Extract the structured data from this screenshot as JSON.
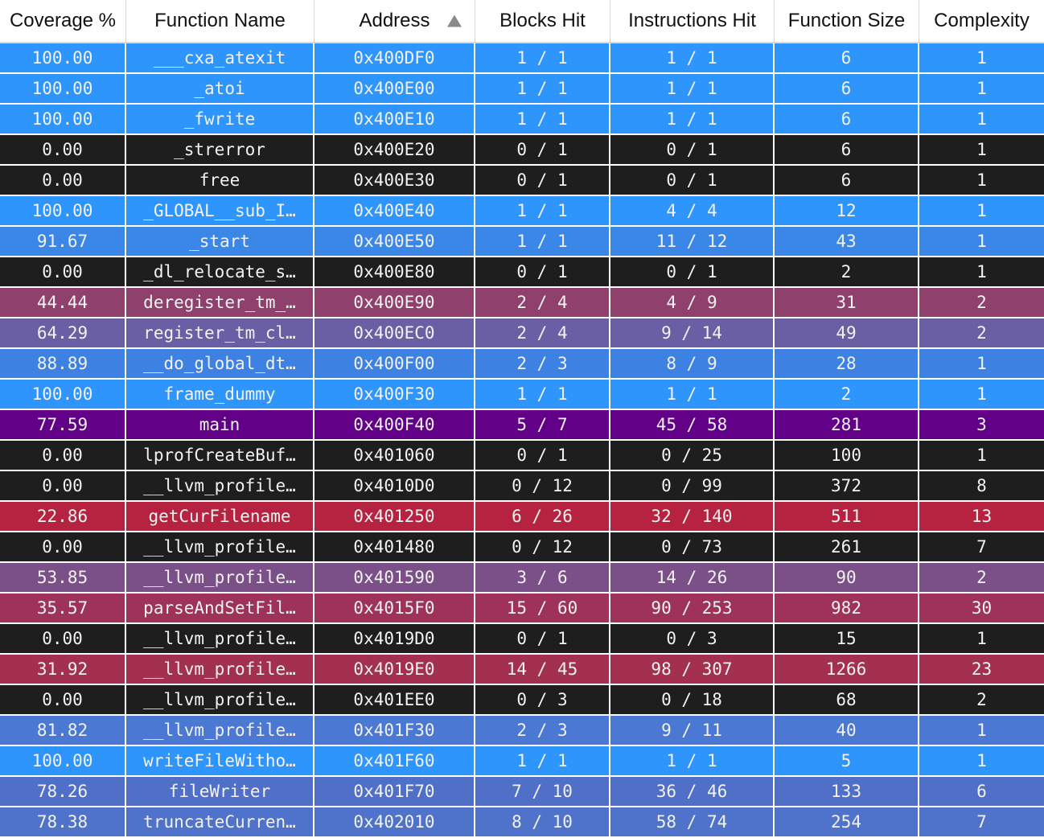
{
  "columns": [
    "Coverage %",
    "Function Name",
    "Address",
    "Blocks Hit",
    "Instructions Hit",
    "Function Size",
    "Complexity"
  ],
  "sort": {
    "column": "Address",
    "direction": "ascending"
  },
  "rows": [
    {
      "cov": "100.00",
      "name": "___cxa_atexit",
      "addr": "0x400DF0",
      "blocks": "1 / 1",
      "instr": "1 / 1",
      "size": "6",
      "cx": "1",
      "color": "#2d95fc"
    },
    {
      "cov": "100.00",
      "name": "_atoi",
      "addr": "0x400E00",
      "blocks": "1 / 1",
      "instr": "1 / 1",
      "size": "6",
      "cx": "1",
      "color": "#2d95fc"
    },
    {
      "cov": "100.00",
      "name": "_fwrite",
      "addr": "0x400E10",
      "blocks": "1 / 1",
      "instr": "1 / 1",
      "size": "6",
      "cx": "1",
      "color": "#2d95fc"
    },
    {
      "cov": "0.00",
      "name": "_strerror",
      "addr": "0x400E20",
      "blocks": "0 / 1",
      "instr": "0 / 1",
      "size": "6",
      "cx": "1",
      "color": "#1e1e1e"
    },
    {
      "cov": "0.00",
      "name": "free",
      "addr": "0x400E30",
      "blocks": "0 / 1",
      "instr": "0 / 1",
      "size": "6",
      "cx": "1",
      "color": "#1e1e1e"
    },
    {
      "cov": "100.00",
      "name": "_GLOBAL__sub_I…",
      "addr": "0x400E40",
      "blocks": "1 / 1",
      "instr": "4 / 4",
      "size": "12",
      "cx": "1",
      "color": "#2d95fc"
    },
    {
      "cov": "91.67",
      "name": "_start",
      "addr": "0x400E50",
      "blocks": "1 / 1",
      "instr": "11 / 12",
      "size": "43",
      "cx": "1",
      "color": "#3b87e8"
    },
    {
      "cov": "0.00",
      "name": "_dl_relocate_s…",
      "addr": "0x400E80",
      "blocks": "0 / 1",
      "instr": "0 / 1",
      "size": "2",
      "cx": "1",
      "color": "#1e1e1e"
    },
    {
      "cov": "44.44",
      "name": "deregister_tm_…",
      "addr": "0x400E90",
      "blocks": "2 / 4",
      "instr": "4 / 9",
      "size": "31",
      "cx": "2",
      "color": "#8f406d"
    },
    {
      "cov": "64.29",
      "name": "register_tm_cl…",
      "addr": "0x400EC0",
      "blocks": "2 / 4",
      "instr": "9 / 14",
      "size": "49",
      "cx": "2",
      "color": "#6a5ea5"
    },
    {
      "cov": "88.89",
      "name": "__do_global_dt…",
      "addr": "0x400F00",
      "blocks": "2 / 3",
      "instr": "8 / 9",
      "size": "28",
      "cx": "1",
      "color": "#3d82e2"
    },
    {
      "cov": "100.00",
      "name": "frame_dummy",
      "addr": "0x400F30",
      "blocks": "1 / 1",
      "instr": "1 / 1",
      "size": "2",
      "cx": "1",
      "color": "#2d95fc"
    },
    {
      "cov": "77.59",
      "name": "main",
      "addr": "0x400F40",
      "blocks": "5 / 7",
      "instr": "45 / 58",
      "size": "281",
      "cx": "3",
      "color": "#620087"
    },
    {
      "cov": "0.00",
      "name": "lprofCreateBuf…",
      "addr": "0x401060",
      "blocks": "0 / 1",
      "instr": "0 / 25",
      "size": "100",
      "cx": "1",
      "color": "#1e1e1e"
    },
    {
      "cov": "0.00",
      "name": "__llvm_profile…",
      "addr": "0x4010D0",
      "blocks": "0 / 12",
      "instr": "0 / 99",
      "size": "372",
      "cx": "8",
      "color": "#1e1e1e"
    },
    {
      "cov": "22.86",
      "name": "getCurFilename",
      "addr": "0x401250",
      "blocks": "6 / 26",
      "instr": "32 / 140",
      "size": "511",
      "cx": "13",
      "color": "#b52340"
    },
    {
      "cov": "0.00",
      "name": "__llvm_profile…",
      "addr": "0x401480",
      "blocks": "0 / 12",
      "instr": "0 / 73",
      "size": "261",
      "cx": "7",
      "color": "#1e1e1e"
    },
    {
      "cov": "53.85",
      "name": "__llvm_profile…",
      "addr": "0x401590",
      "blocks": "3 / 6",
      "instr": "14 / 26",
      "size": "90",
      "cx": "2",
      "color": "#7b5088"
    },
    {
      "cov": "35.57",
      "name": "parseAndSetFil…",
      "addr": "0x4015F0",
      "blocks": "15 / 60",
      "instr": "90 / 253",
      "size": "982",
      "cx": "30",
      "color": "#9e3258"
    },
    {
      "cov": "0.00",
      "name": "__llvm_profile…",
      "addr": "0x4019D0",
      "blocks": "0 / 1",
      "instr": "0 / 3",
      "size": "15",
      "cx": "1",
      "color": "#1e1e1e"
    },
    {
      "cov": "31.92",
      "name": "__llvm_profile…",
      "addr": "0x4019E0",
      "blocks": "14 / 45",
      "instr": "98 / 307",
      "size": "1266",
      "cx": "23",
      "color": "#a4304f"
    },
    {
      "cov": "0.00",
      "name": "__llvm_profile…",
      "addr": "0x401EE0",
      "blocks": "0 / 3",
      "instr": "0 / 18",
      "size": "68",
      "cx": "2",
      "color": "#1e1e1e"
    },
    {
      "cov": "81.82",
      "name": "__llvm_profile…",
      "addr": "0x401F30",
      "blocks": "2 / 3",
      "instr": "9 / 11",
      "size": "40",
      "cx": "1",
      "color": "#4a78d2"
    },
    {
      "cov": "100.00",
      "name": "writeFileWitho…",
      "addr": "0x401F60",
      "blocks": "1 / 1",
      "instr": "1 / 1",
      "size": "5",
      "cx": "1",
      "color": "#2d95fc"
    },
    {
      "cov": "78.26",
      "name": "fileWriter",
      "addr": "0x401F70",
      "blocks": "7 / 10",
      "instr": "36 / 46",
      "size": "133",
      "cx": "6",
      "color": "#5070c8"
    },
    {
      "cov": "78.38",
      "name": "truncateCurren…",
      "addr": "0x402010",
      "blocks": "8 / 10",
      "instr": "58 / 74",
      "size": "254",
      "cx": "7",
      "color": "#4f72ca"
    }
  ]
}
